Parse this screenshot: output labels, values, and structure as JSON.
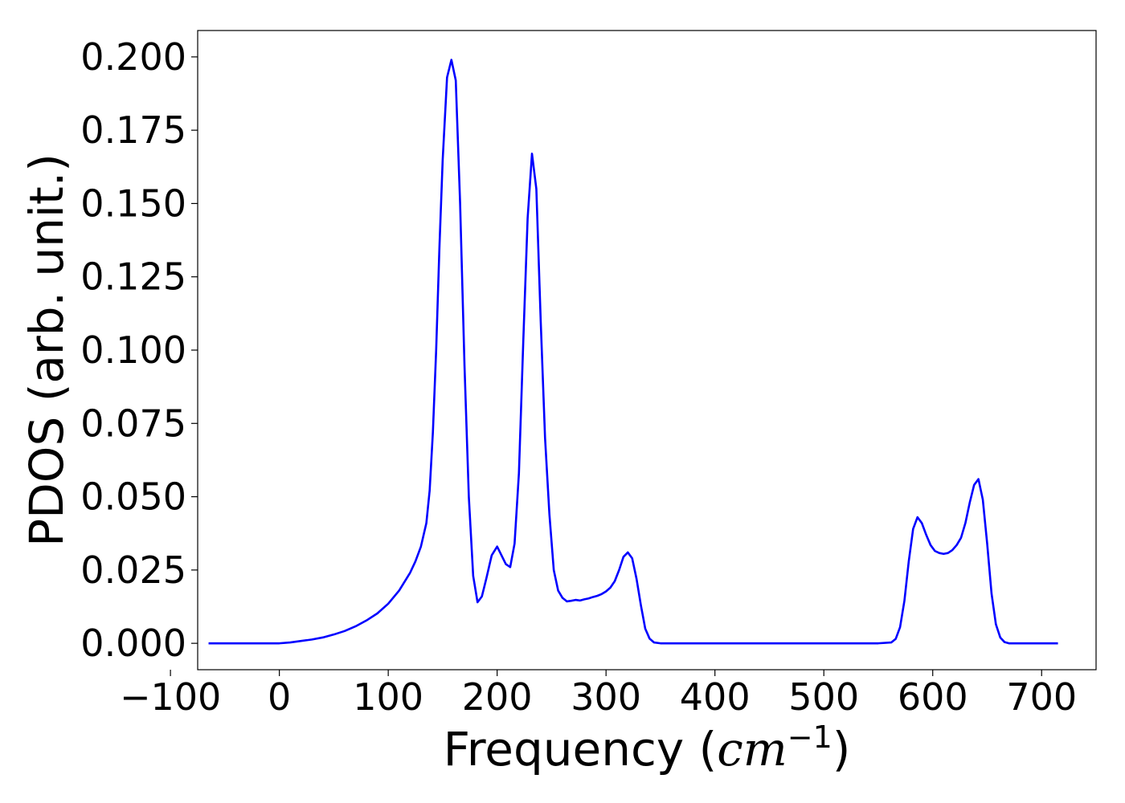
{
  "chart_data": {
    "type": "line",
    "xlabel": "Frequency (cm⁻¹)",
    "xlabel_parts": {
      "prefix": "Frequency (",
      "math": "cm",
      "superscript": "−1",
      "suffix": ")"
    },
    "ylabel": "PDOS (arb. unit.)",
    "xlim": [
      -75,
      750
    ],
    "ylim": [
      -0.009,
      0.209
    ],
    "grid": false,
    "legend": "none",
    "x_ticks": [
      -100,
      0,
      100,
      200,
      300,
      400,
      500,
      600,
      700
    ],
    "x_tick_labels": [
      "−100",
      "0",
      "100",
      "200",
      "300",
      "400",
      "500",
      "600",
      "700"
    ],
    "y_ticks": [
      0.0,
      0.025,
      0.05,
      0.075,
      0.1,
      0.125,
      0.15,
      0.175,
      0.2
    ],
    "y_tick_labels": [
      "0.000",
      "0.025",
      "0.050",
      "0.075",
      "0.100",
      "0.125",
      "0.150",
      "0.175",
      "0.200"
    ],
    "series": [
      {
        "color": "#0000ff",
        "x": [
          -65,
          -40,
          -20,
          0,
          10,
          20,
          30,
          40,
          50,
          60,
          70,
          80,
          90,
          100,
          110,
          120,
          125,
          130,
          135,
          138,
          141,
          144,
          147,
          150,
          154,
          158,
          162,
          166,
          170,
          174,
          178,
          182,
          186,
          190,
          195,
          200,
          204,
          208,
          212,
          216,
          220,
          224,
          228,
          232,
          236,
          240,
          244,
          248,
          252,
          256,
          260,
          264,
          268,
          272,
          276,
          280,
          284,
          288,
          292,
          296,
          300,
          304,
          308,
          312,
          316,
          320,
          324,
          328,
          332,
          336,
          340,
          344,
          350,
          400,
          450,
          500,
          550,
          562,
          566,
          570,
          574,
          578,
          582,
          586,
          590,
          594,
          598,
          602,
          606,
          610,
          614,
          618,
          622,
          626,
          630,
          634,
          638,
          642,
          646,
          650,
          654,
          658,
          662,
          666,
          670,
          690,
          715
        ],
        "y": [
          0.0,
          0.0,
          0.0,
          0.0,
          0.0003,
          0.0008,
          0.0013,
          0.002,
          0.003,
          0.0042,
          0.0058,
          0.0078,
          0.0102,
          0.0135,
          0.018,
          0.024,
          0.028,
          0.033,
          0.041,
          0.052,
          0.072,
          0.1,
          0.135,
          0.165,
          0.193,
          0.199,
          0.192,
          0.15,
          0.095,
          0.05,
          0.023,
          0.014,
          0.016,
          0.022,
          0.03,
          0.033,
          0.03,
          0.027,
          0.026,
          0.034,
          0.058,
          0.103,
          0.145,
          0.167,
          0.155,
          0.11,
          0.07,
          0.044,
          0.025,
          0.018,
          0.0155,
          0.0143,
          0.0145,
          0.0148,
          0.0146,
          0.015,
          0.0153,
          0.0158,
          0.0162,
          0.0168,
          0.0177,
          0.019,
          0.0212,
          0.025,
          0.0295,
          0.031,
          0.029,
          0.022,
          0.013,
          0.005,
          0.0016,
          0.0003,
          0.0,
          0.0,
          0.0,
          0.0,
          0.0,
          0.0003,
          0.0015,
          0.0055,
          0.0145,
          0.028,
          0.039,
          0.043,
          0.041,
          0.037,
          0.0335,
          0.0315,
          0.0308,
          0.0305,
          0.0308,
          0.0318,
          0.0335,
          0.036,
          0.041,
          0.048,
          0.054,
          0.056,
          0.049,
          0.034,
          0.017,
          0.0065,
          0.002,
          0.0004,
          0.0,
          0.0,
          0.0
        ]
      }
    ]
  }
}
